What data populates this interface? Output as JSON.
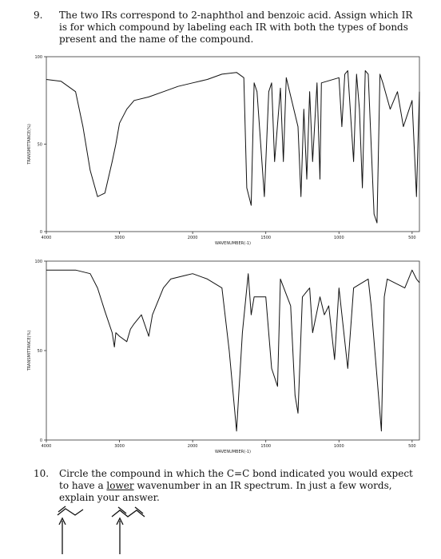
{
  "question9": {
    "number": "9.",
    "text": "The two IRs correspond to 2-naphthol and benzoic acid. Assign which IR is for which compound by labeling each IR with both the types of bonds present and the name of the compound."
  },
  "chart_data": [
    {
      "type": "line",
      "xlabel": "WAVENUMBER(-1)",
      "ylabel": "TRANSMITTANCE(%)",
      "color": "#111111",
      "xlim": [
        4000,
        450
      ],
      "xticks": [
        4000,
        3000,
        2000,
        1500,
        1000,
        500
      ],
      "ylim": [
        0,
        100
      ],
      "yticks": [
        0,
        50,
        100
      ],
      "x": [
        4000,
        3800,
        3600,
        3500,
        3400,
        3300,
        3200,
        3100,
        3050,
        3000,
        2900,
        2800,
        2600,
        2400,
        2200,
        2000,
        1900,
        1800,
        1700,
        1650,
        1630,
        1600,
        1580,
        1560,
        1510,
        1480,
        1460,
        1440,
        1400,
        1380,
        1360,
        1280,
        1260,
        1240,
        1220,
        1200,
        1180,
        1150,
        1130,
        1120,
        1000,
        980,
        960,
        940,
        900,
        880,
        860,
        840,
        820,
        800,
        760,
        740,
        720,
        700,
        650,
        600,
        560,
        500,
        470,
        450
      ],
      "values": [
        87,
        86,
        80,
        60,
        35,
        20,
        22,
        40,
        50,
        62,
        70,
        75,
        77,
        80,
        83,
        85,
        87,
        90,
        91,
        88,
        25,
        15,
        85,
        80,
        20,
        80,
        85,
        40,
        82,
        40,
        88,
        60,
        20,
        70,
        30,
        80,
        40,
        85,
        30,
        85,
        88,
        60,
        90,
        92,
        40,
        90,
        70,
        25,
        92,
        90,
        10,
        5,
        90,
        85,
        70,
        80,
        60,
        75,
        20,
        80
      ]
    },
    {
      "type": "line",
      "xlabel": "WAVENUMBER(-1)",
      "ylabel": "TRANSMITTANCE(%)",
      "color": "#111111",
      "xlim": [
        4000,
        450
      ],
      "xticks": [
        4000,
        3000,
        2000,
        1500,
        1000,
        500
      ],
      "ylim": [
        0,
        100
      ],
      "yticks": [
        0,
        50,
        100
      ],
      "x": [
        4000,
        3800,
        3600,
        3400,
        3300,
        3200,
        3100,
        3070,
        3050,
        3000,
        2900,
        2850,
        2800,
        2700,
        2600,
        2550,
        2400,
        2300,
        2100,
        2000,
        1900,
        1800,
        1750,
        1700,
        1660,
        1620,
        1600,
        1580,
        1500,
        1460,
        1420,
        1400,
        1330,
        1300,
        1280,
        1250,
        1200,
        1180,
        1130,
        1100,
        1070,
        1030,
        1000,
        940,
        900,
        800,
        780,
        710,
        690,
        670,
        550,
        500,
        470,
        450
      ],
      "values": [
        95,
        95,
        95,
        93,
        85,
        72,
        60,
        52,
        60,
        58,
        55,
        62,
        65,
        70,
        58,
        70,
        85,
        90,
        92,
        93,
        90,
        85,
        50,
        5,
        60,
        93,
        70,
        80,
        80,
        40,
        30,
        90,
        75,
        25,
        15,
        80,
        85,
        60,
        80,
        70,
        75,
        45,
        85,
        40,
        85,
        90,
        75,
        5,
        80,
        90,
        85,
        95,
        90,
        88
      ]
    }
  ],
  "question10": {
    "number": "10.",
    "text_before": "Circle the compound in which the C=C bond indicated you would expect to have a",
    "underlined": "lower",
    "text_after": "wavenumber in an IR spectrum. In just a few words, explain your answer."
  }
}
